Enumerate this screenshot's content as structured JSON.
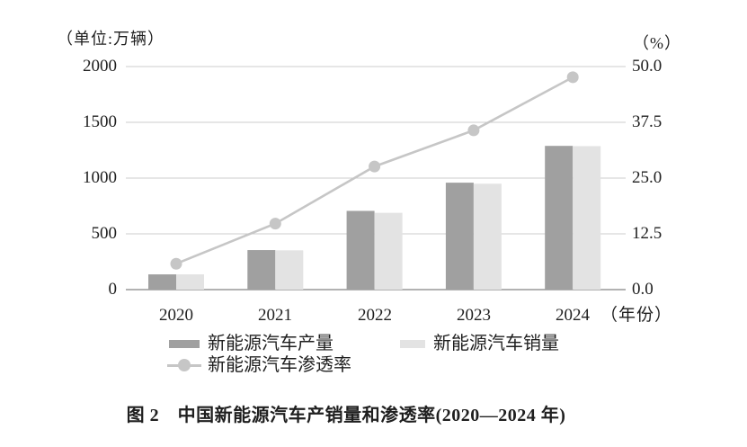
{
  "chart_data": {
    "type": "combo-bar-line",
    "caption": "图 2　中国新能源汽车产销量和渗透率(2020—2024 年)",
    "unit_left": "（单位:万辆）",
    "unit_right": "（%）",
    "categories": [
      "2020",
      "2021",
      "2022",
      "2023",
      "2024"
    ],
    "x_axis_suffix": "（年份）",
    "series": [
      {
        "name": "新能源汽车产量",
        "type": "bar",
        "axis": "left",
        "color": "#a0a0a0",
        "values": [
          136.6,
          354.5,
          705.8,
          958.7,
          1288.8
        ]
      },
      {
        "name": "新能源汽车销量",
        "type": "bar",
        "axis": "left",
        "color": "#e3e3e3",
        "values": [
          136.7,
          352.1,
          688.7,
          949.5,
          1286.6
        ]
      },
      {
        "name": "新能源汽车渗透率",
        "type": "line",
        "axis": "right",
        "color": "#c6c6c6",
        "values": [
          5.8,
          14.8,
          27.6,
          35.7,
          47.6
        ]
      }
    ],
    "left_axis": {
      "min": 0,
      "max": 2000,
      "ticks": [
        "2000",
        "1500",
        "1000",
        "500",
        "0"
      ]
    },
    "right_axis": {
      "min": 0,
      "max": 50,
      "ticks": [
        "50.0",
        "37.5",
        "25.0",
        "12.5",
        "0.0"
      ]
    },
    "grid": true,
    "legend_position": "bottom",
    "colors": {
      "grid": "#cccccc",
      "axis": "#999999",
      "text": "#1f1f1f"
    }
  }
}
